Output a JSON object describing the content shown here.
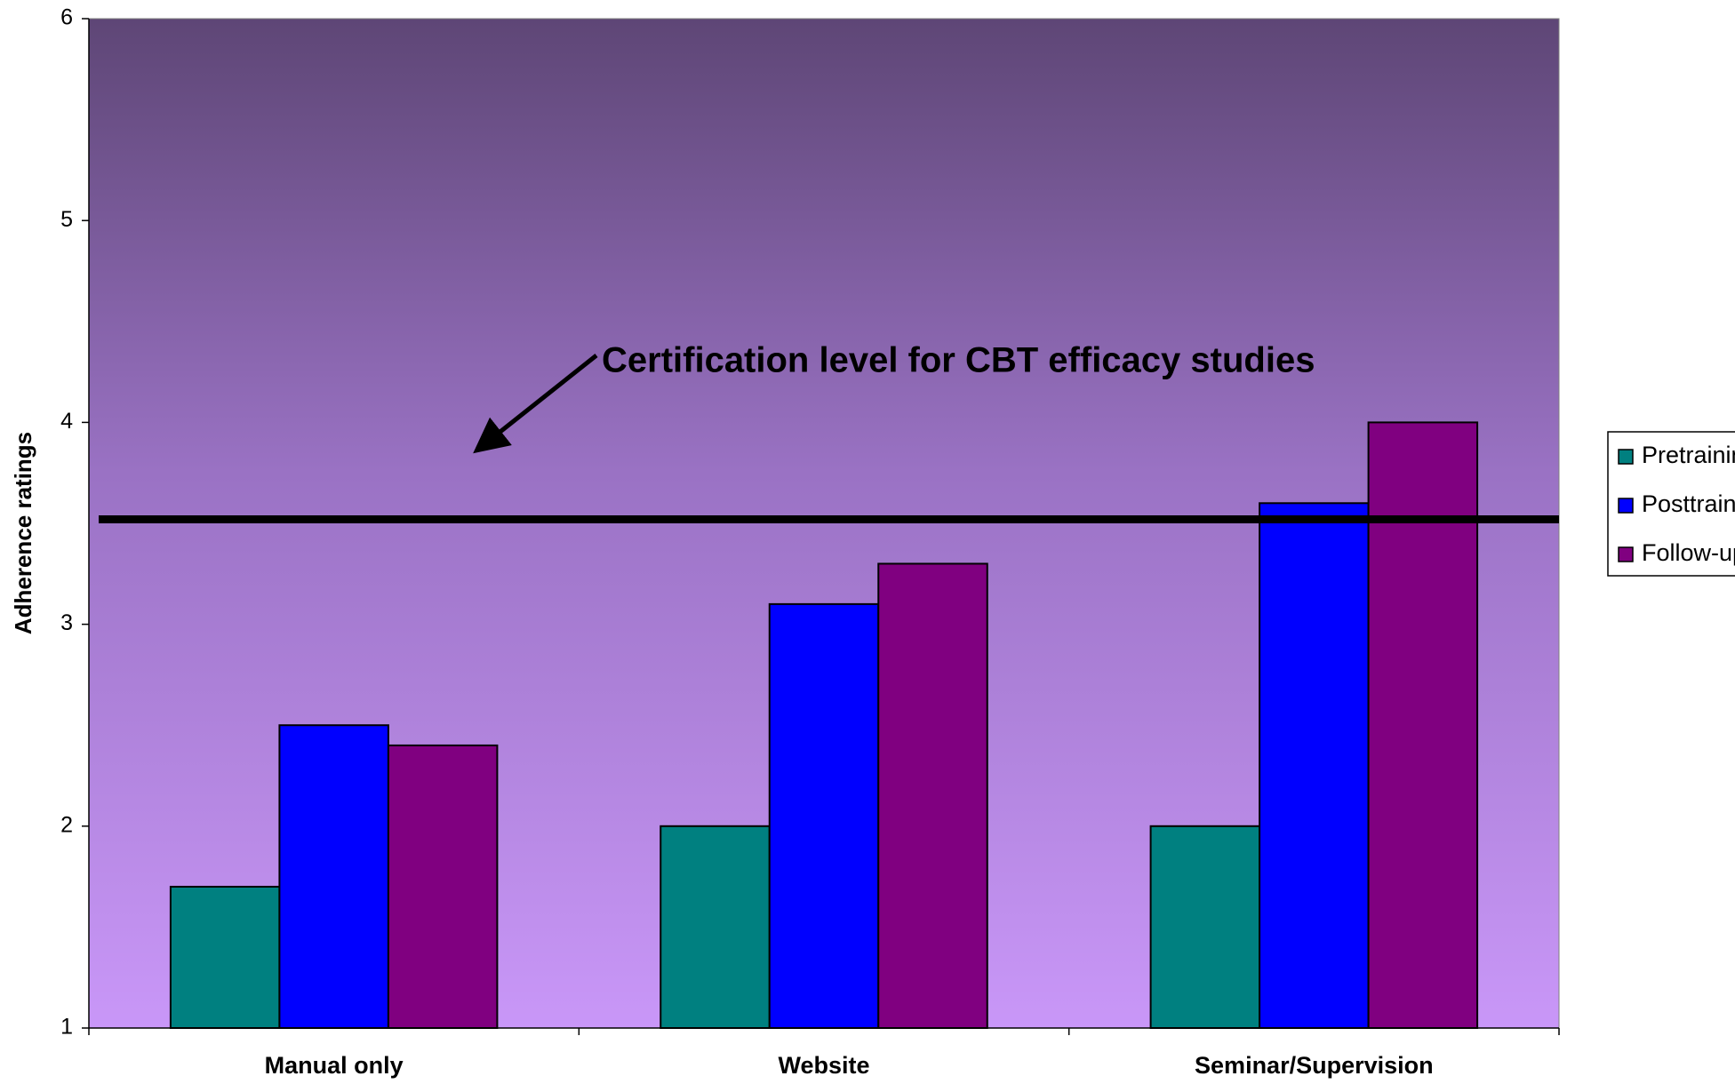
{
  "chart_data": {
    "type": "bar",
    "y_label": "Adherence ratings",
    "categories": [
      "Manual only",
      "Website",
      "Seminar/Supervision"
    ],
    "series": [
      {
        "name": "Pretraining",
        "color": "#008080",
        "values": [
          1.7,
          2.0,
          2.0
        ]
      },
      {
        "name": "Posttraining",
        "color": "#0000ff",
        "values": [
          2.5,
          3.1,
          3.6
        ]
      },
      {
        "name": "Follow-up",
        "color": "#800080",
        "values": [
          2.4,
          3.3,
          4.0
        ]
      }
    ],
    "ylim": [
      1,
      6
    ],
    "yticks": [
      1,
      2,
      3,
      4,
      5,
      6
    ],
    "reference_line": {
      "value": 3.52,
      "label": "Certification level for CBT efficacy studies"
    },
    "legend": "right"
  }
}
